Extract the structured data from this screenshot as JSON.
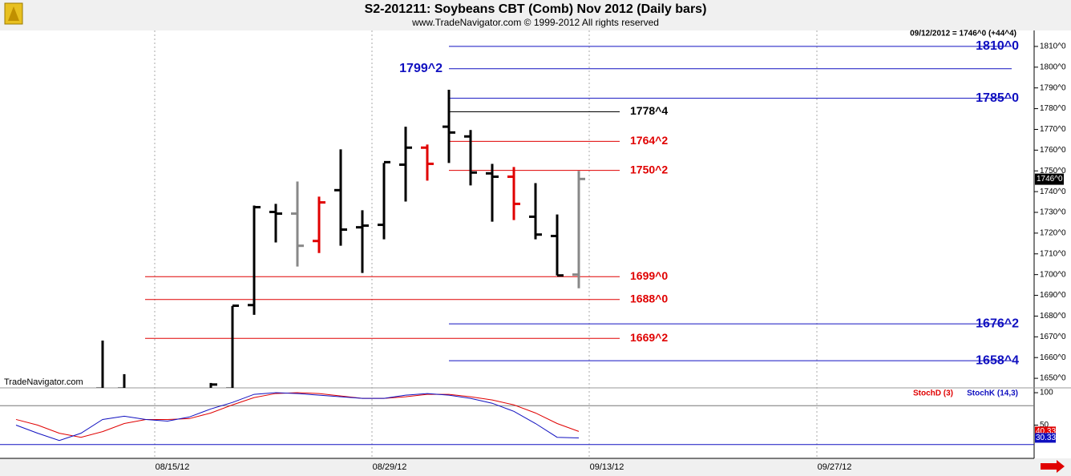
{
  "header": {
    "title": "S2-201211:  Soybeans CBT (Comb) Nov 2012  (Daily bars)",
    "subtitle": "www.TradeNavigator.com © 1999-2012 All rights reserved",
    "last_quote": "09/12/2012 = 1746^0 (+44^4)",
    "watermark": "TradeNavigator.com",
    "date_labels": [
      "08/15/12",
      "08/29/12",
      "09/13/12",
      "09/27/12"
    ]
  },
  "chart_data": [
    {
      "type": "ohlc",
      "categories": [
        null,
        null,
        null,
        null,
        null,
        null,
        null,
        null,
        null,
        null,
        null,
        null,
        null,
        null,
        null,
        null,
        null,
        null,
        null,
        null,
        null,
        null,
        null,
        null,
        null,
        null,
        null
      ],
      "open": [
        null,
        null,
        null,
        null,
        1645,
        1645,
        null,
        null,
        null,
        1643,
        1645,
        1685.3,
        1730.2,
        1729.4,
        1716.2,
        1740.7,
        1722.8,
        1724,
        1753,
        1761.2,
        1771.3,
        1766.6,
        1748.8,
        1747.2,
        1727.9,
        1718.6,
        1700
      ],
      "high": [
        null,
        null,
        null,
        null,
        1668.2,
        1652,
        null,
        null,
        null,
        1647.75,
        1684.9,
        1733.3,
        1734.1,
        1744.9,
        1737.6,
        1760.4,
        1731,
        1753.8,
        1771.3,
        1762.7,
        1789.1,
        1769.7,
        1753.4,
        1751.9,
        1744.1,
        1729,
        1750
      ],
      "low": [
        null,
        null,
        null,
        null,
        1640,
        1640,
        null,
        null,
        null,
        1642,
        1640,
        1680.6,
        1715.5,
        1703.9,
        1710.4,
        1713.9,
        1700.8,
        1717,
        1735.2,
        1745.3,
        1753.8,
        1743,
        1725.5,
        1726.3,
        1717,
        1699.6,
        1693.4
      ],
      "close": [
        null,
        null,
        null,
        null,
        1642,
        1643,
        null,
        null,
        null,
        1647,
        1685,
        1732.5,
        1729.4,
        1713.9,
        1734.8,
        1721.7,
        1723.6,
        1754.2,
        1761.2,
        1753.4,
        1768.5,
        1749.2,
        1747.2,
        1734.1,
        1719.3,
        1699.6,
        1746.1
      ],
      "bar_colors": [
        null,
        null,
        null,
        null,
        "#000000",
        "#000000",
        null,
        null,
        null,
        "#000000",
        "#000000",
        "#000000",
        "#000000",
        "#888888",
        "#e00000",
        "#000000",
        "#000000",
        "#000000",
        "#000000",
        "#e00000",
        "#000000",
        "#000000",
        "#000000",
        "#e00000",
        "#000000",
        "#000000",
        "#888888"
      ],
      "ylim": [
        1645.4,
        1817.7
      ],
      "yticks": [
        {
          "value": 1650,
          "label": "1650^0"
        },
        {
          "value": 1660,
          "label": "1660^0"
        },
        {
          "value": 1670,
          "label": "1670^0"
        },
        {
          "value": 1680,
          "label": "1680^0"
        },
        {
          "value": 1690,
          "label": "1690^0"
        },
        {
          "value": 1700,
          "label": "1700^0"
        },
        {
          "value": 1710,
          "label": "1710^0"
        },
        {
          "value": 1720,
          "label": "1720^0"
        },
        {
          "value": 1730,
          "label": "1730^0"
        },
        {
          "value": 1740,
          "label": "1740^0"
        },
        {
          "value": 1750,
          "label": "1750^0"
        },
        {
          "value": 1760,
          "label": "1760^0"
        },
        {
          "value": 1770,
          "label": "1770^0"
        },
        {
          "value": 1780,
          "label": "1780^0"
        },
        {
          "value": 1790,
          "label": "1790^0"
        },
        {
          "value": 1800,
          "label": "1800^0"
        },
        {
          "value": 1810,
          "label": "1810^0"
        }
      ],
      "last": {
        "value": 1746,
        "label": "1746^0"
      },
      "levels": [
        {
          "value": 1810,
          "label": "1810^0",
          "color": "#1010c0"
        },
        {
          "value": 1799.25,
          "label": "1799^2",
          "color": "#1010c0"
        },
        {
          "value": 1785,
          "label": "1785^0",
          "color": "#1010c0"
        },
        {
          "value": 1778.5,
          "label": "1778^4",
          "color": "#000000"
        },
        {
          "value": 1764.25,
          "label": "1764^2",
          "color": "#e00000"
        },
        {
          "value": 1750.25,
          "label": "1750^2",
          "color": "#e00000"
        },
        {
          "value": 1699,
          "label": "1699^0",
          "color": "#e00000"
        },
        {
          "value": 1688,
          "label": "1688^0",
          "color": "#e00000"
        },
        {
          "value": 1676.25,
          "label": "1676^2",
          "color": "#1010c0"
        },
        {
          "value": 1669.25,
          "label": "1669^2",
          "color": "#e00000"
        },
        {
          "value": 1658.5,
          "label": "1658^4",
          "color": "#1010c0"
        }
      ]
    },
    {
      "type": "line",
      "categories": [
        null,
        null,
        null,
        null,
        null,
        null,
        null,
        null,
        null,
        null,
        null,
        null,
        null,
        null,
        null,
        null,
        null,
        null,
        null,
        null,
        null,
        null,
        null,
        null,
        null,
        null,
        null
      ],
      "series": [
        {
          "name": "StochD (3)",
          "color": "#e00000",
          "values": [
            58.75,
            50,
            37.5,
            31.25,
            40,
            52.5,
            58.75,
            58.75,
            60,
            68.75,
            81.25,
            92.5,
            98.75,
            100,
            98.75,
            95,
            91.25,
            91.25,
            93.75,
            97.5,
            97.5,
            93.75,
            88.75,
            81.25,
            68.75,
            52.5,
            40.33
          ]
        },
        {
          "name": "StochK (14,3)",
          "color": "#1010c0",
          "values": [
            50,
            37.5,
            26.25,
            37.5,
            58.75,
            63.75,
            58.75,
            56.25,
            62.5,
            75,
            85,
            97.5,
            100,
            98.75,
            96.25,
            93.75,
            91.25,
            91.25,
            96.25,
            98.75,
            96.25,
            91.25,
            83.75,
            71.25,
            52.5,
            31.25,
            30.33
          ]
        }
      ],
      "ylim": [
        0,
        106.25
      ],
      "yticks": [
        50,
        100
      ],
      "ref_lines": [
        {
          "value": 80,
          "color": "#777777"
        },
        {
          "value": 20,
          "color": "#1010c0"
        }
      ]
    }
  ]
}
